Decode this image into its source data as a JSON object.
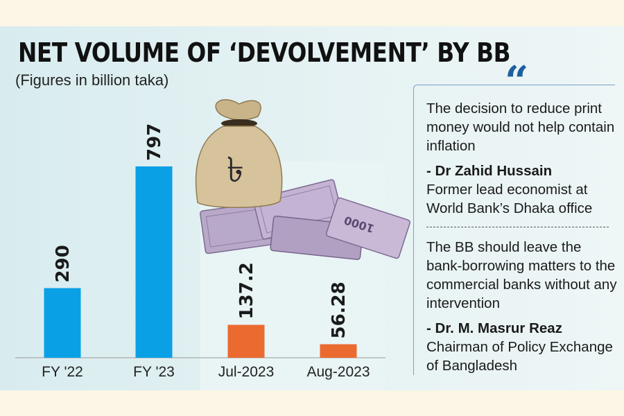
{
  "chart_data": {
    "type": "bar",
    "title": "NET VOLUME OF ‘DEVOLVEMENT’ BY BB",
    "subtitle": "(Figures in billion taka)",
    "categories": [
      "FY '22",
      "FY '23",
      "Jul-2023",
      "Aug-2023"
    ],
    "values": [
      290,
      797,
      137.2,
      56.28
    ],
    "value_labels": [
      "290",
      "797",
      "137.2",
      "56.28"
    ],
    "colors": [
      "#0aa0e6",
      "#0aa0e6",
      "#eb6a2f",
      "#eb6a2f"
    ],
    "ylim": [
      0,
      1000
    ],
    "grid": false,
    "legend": "none"
  },
  "quotes": [
    {
      "text": "The decision to reduce print money would not help contain inflation",
      "author": "- Dr Zahid Hussain",
      "role": "Former lead economist at World Bank’s Dhaka office"
    },
    {
      "text": "The BB should leave the bank-borrowing matters to the commercial banks without any intervention",
      "author": "- Dr. M. Masrur Reaz",
      "role": "Chairman of Policy Exchange of Bangladesh"
    }
  ],
  "quote_icon": "“",
  "illustration": {
    "bag_symbol": "৳",
    "banknote_text": "1000"
  },
  "colors": {
    "fy_bars": "#0aa0e6",
    "month_bars": "#eb6a2f",
    "quote_accent": "#1f5fa0"
  }
}
